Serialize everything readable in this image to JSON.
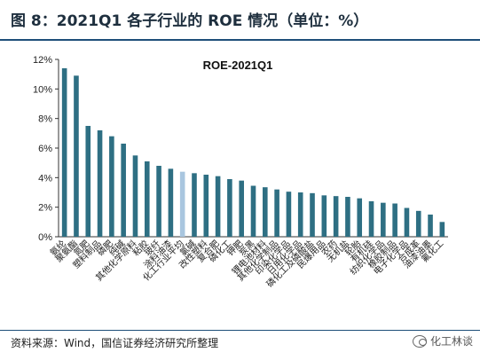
{
  "figure": {
    "title": "图 8：2021Q1 各子行业的 ROE 情况（单位：%）",
    "source": "资料来源：Wind，国信证券经济研究所整理",
    "watermark": "化工林谈"
  },
  "colors": {
    "bar": "#2e6f83",
    "highlight": "#a9c6df",
    "title_rule": "#1e4e79"
  },
  "chart_data": {
    "type": "bar",
    "title": "ROE-2021Q1",
    "ylim": [
      0,
      12
    ],
    "y_ticks": [
      "0%",
      "2%",
      "4%",
      "6%",
      "8%",
      "10%",
      "12%"
    ],
    "y_tick_values": [
      0,
      2,
      4,
      6,
      8,
      10,
      12
    ],
    "categories": [
      "氨纶",
      "聚氨酯",
      "氮肥",
      "塑料制品",
      "磷肥",
      "纯碱",
      "其他化学原料",
      "粘胶",
      "玻纤",
      "涂料油漆",
      "化工行业平均",
      "氯碱",
      "改性塑料",
      "复合肥",
      "磷化工",
      "钾肥",
      "炭黑",
      "锂电池材料",
      "其他化学制品",
      "印染化学品",
      "日用化学品",
      "磷化工及磷酸盐",
      "民爆用品",
      "农药",
      "无机盐",
      "轮胎",
      "有机硅",
      "纺织化学品",
      "橡胶制品",
      "电子化学品",
      "合成革",
      "油漆油墨",
      "氟化工"
    ],
    "values": [
      11.4,
      10.9,
      7.5,
      7.2,
      6.8,
      6.3,
      5.5,
      5.1,
      4.8,
      4.6,
      4.4,
      4.3,
      4.2,
      4.1,
      3.9,
      3.8,
      3.45,
      3.35,
      3.2,
      3.05,
      3.0,
      2.95,
      2.8,
      2.75,
      2.7,
      2.6,
      2.4,
      2.3,
      2.25,
      1.95,
      1.75,
      1.5,
      1.0
    ],
    "highlight_index": 10,
    "grid": false,
    "legend": "none"
  }
}
